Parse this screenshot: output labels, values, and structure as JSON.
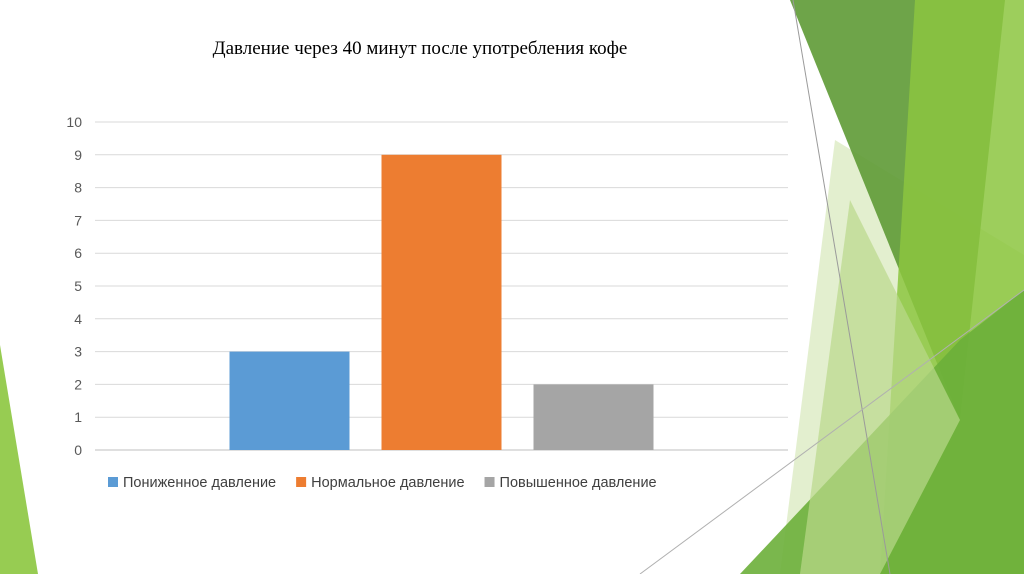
{
  "chart_data": {
    "type": "bar",
    "title": "Давление через 40 минут после употребления кофе",
    "xlabel": "",
    "ylabel": "",
    "ylim": [
      0,
      10
    ],
    "y_ticks": [
      "0",
      "1",
      "2",
      "3",
      "4",
      "5",
      "6",
      "7",
      "8",
      "9",
      "10"
    ],
    "grid": true,
    "legend_position": "bottom",
    "series": [
      {
        "name": "Пониженное давление",
        "value": 3,
        "color": "#5B9BD5"
      },
      {
        "name": "Нормальное давление",
        "value": 9,
        "color": "#ED7D31"
      },
      {
        "name": "Повышенное давление",
        "value": 2,
        "color": "#A5A5A5"
      }
    ]
  },
  "theme": {
    "accent_dark": "#4E8F2E",
    "accent_mid": "#7DB843",
    "accent_light": "#C9E3A6"
  }
}
